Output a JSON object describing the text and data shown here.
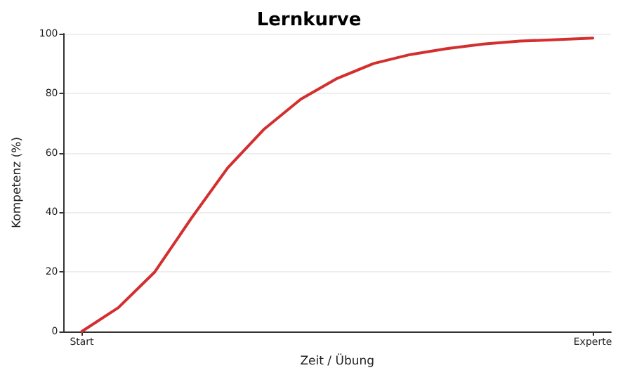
{
  "chart_data": {
    "type": "line",
    "title": "Lernkurve",
    "xlabel": "Zeit / Übung",
    "ylabel": "Kompetenz (%)",
    "categories": [
      "Start",
      null,
      null,
      null,
      null,
      null,
      null,
      null,
      null,
      null,
      null,
      null,
      null,
      null,
      "Experte"
    ],
    "series": [
      {
        "color": "#d32f2f",
        "values": [
          0,
          8,
          20,
          38,
          55,
          68,
          78,
          85,
          90,
          93,
          95,
          96.5,
          97.5,
          98,
          98.5
        ]
      }
    ],
    "ylim": [
      0,
      100
    ],
    "yticks": [
      0,
      20,
      40,
      60,
      80,
      100
    ],
    "grid": "y",
    "marker": "none",
    "line_style": "solid"
  }
}
